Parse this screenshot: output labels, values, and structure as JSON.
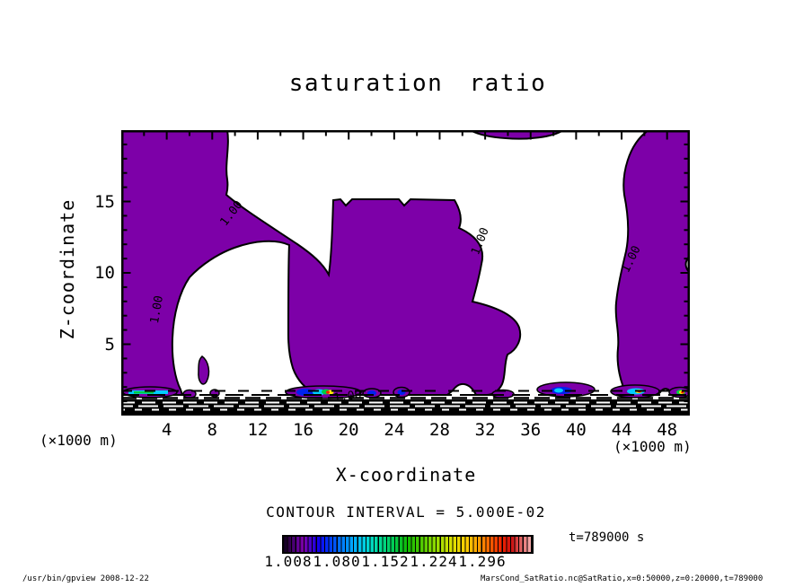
{
  "title": "saturation ratio",
  "plot": {
    "x_axis": {
      "title": "X-coordinate",
      "unit_label": "(×1000 m)",
      "tick_labels": [
        "4",
        "8",
        "12",
        "16",
        "20",
        "24",
        "28",
        "32",
        "36",
        "40",
        "44",
        "48"
      ],
      "range": [
        0,
        50
      ]
    },
    "z_axis": {
      "title": "Z-coordinate",
      "unit_label": "(×1000 m)",
      "tick_labels": [
        "5",
        "10",
        "15"
      ],
      "range": [
        0,
        20
      ]
    },
    "contour_label": "1.00"
  },
  "legend": {
    "contour_interval_text": "CONTOUR INTERVAL = 5.000E-02",
    "colorbar_tick_labels": [
      "1.008",
      "1.080",
      "1.152",
      "1.224",
      "1.296"
    ],
    "time_text": "t=789000 s"
  },
  "footer": {
    "left": "/usr/bin/gpview  2008-12-22",
    "right": "MarsCond_SatRatio.nc@SatRatio,x=0:50000,z=0:20000,t=789000"
  },
  "colors": {
    "fill_level_1": "#7d00a8",
    "contour_line": "#000000",
    "background": "#ffffff"
  },
  "chart_data": {
    "type": "heatmap",
    "subtype": "filled-contour",
    "title": "saturation ratio",
    "xlabel": "X-coordinate (×1000 m)",
    "ylabel": "Z-coordinate (×1000 m)",
    "x_range_m": [
      0,
      50000
    ],
    "z_range_m": [
      0,
      20000
    ],
    "time_s": 789000,
    "variable": "SatRatio",
    "source_text": "MarsCond_SatRatio.nc@SatRatio",
    "contour_interval": 0.05,
    "labeled_contour_level": 1.0,
    "colorbar_values": [
      1.008,
      1.08,
      1.152,
      1.224,
      1.296
    ],
    "x_ticks": [
      4,
      8,
      12,
      16,
      20,
      24,
      28,
      32,
      36,
      40,
      44,
      48
    ],
    "z_ticks": [
      5,
      10,
      15
    ],
    "filled_regions": [
      {
        "level": ">=1.00",
        "color": "#7d00a8",
        "description": "large left region x≈0–10 km reaching full height, connected by a diagonal band to the central column"
      },
      {
        "level": ">=1.00",
        "color": "#7d00a8",
        "description": "central column x≈18–30 km from the surface layer up to z≈15 km, with white bay x≈5–15 km below z≈11 km"
      },
      {
        "level": ">=1.00",
        "color": "#7d00a8",
        "description": "right column x≈44–50 km spanning full height"
      },
      {
        "level": ">=1.00",
        "color": "#7d00a8",
        "description": "thin sliver along the top boundary near x≈31–39 km"
      },
      {
        "level": ">1.05",
        "color": "rainbow spots (blue/cyan/green/yellow/red)",
        "description": "small high-saturation pockets in the lowest ~1–2 km near the surface"
      },
      {
        "level": "<1.00",
        "color": "#ffffff",
        "description": "unsaturated white regions with dense sub-1.00 contour lines packed in the lowest ~2 km"
      }
    ],
    "grid": false,
    "legend_position": "bottom"
  }
}
